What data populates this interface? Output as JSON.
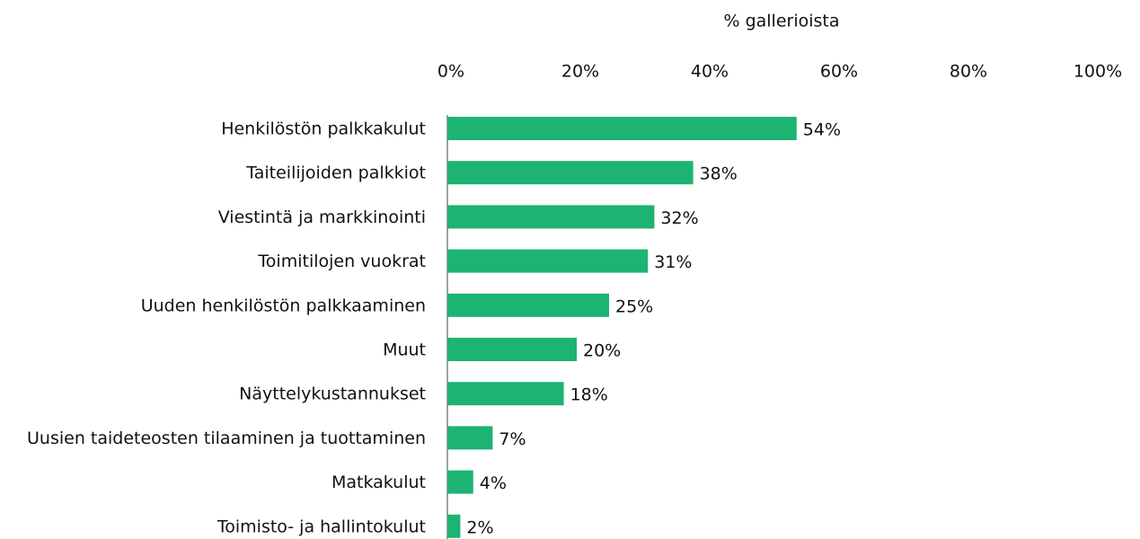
{
  "chart_data": {
    "type": "bar",
    "orientation": "horizontal",
    "xlabel": "% gallerioista",
    "categories": [
      "Henkilöstön palkkakulut",
      "Taiteilijoiden palkkiot",
      "Viestintä ja markkinointi",
      "Toimitilojen vuokrat",
      "Uuden henkilöstön palkkaaminen",
      "Muut",
      "Näyttelykustannukset",
      "Uusien taideteosten tilaaminen ja tuottaminen",
      "Matkakulut",
      "Toimisto- ja hallintokulut"
    ],
    "values": [
      54,
      38,
      32,
      31,
      25,
      20,
      18,
      7,
      4,
      2
    ],
    "value_labels": [
      "54%",
      "38%",
      "32%",
      "31%",
      "25%",
      "20%",
      "18%",
      "7%",
      "4%",
      "2%"
    ],
    "color": "#1db372",
    "xlim": [
      0,
      100
    ],
    "xticks": [
      {
        "value": 0,
        "label": "0%"
      },
      {
        "value": 20,
        "label": "20%"
      },
      {
        "value": 40,
        "label": "40%"
      },
      {
        "value": 60,
        "label": "60%"
      },
      {
        "value": 80,
        "label": "80%"
      },
      {
        "value": 100,
        "label": "100%"
      }
    ],
    "grid": false
  }
}
